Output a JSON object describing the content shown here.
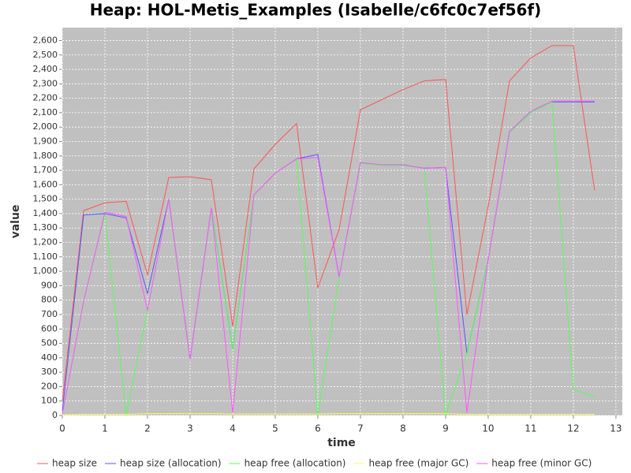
{
  "chart_data": {
    "type": "line",
    "title": "Heap: HOL-Metis_Examples (Isabelle/c6fc0c7ef56f)",
    "x_label": "time",
    "y_label": "value",
    "x": [
      0,
      0.5,
      1,
      1.5,
      2,
      2.5,
      3,
      3.5,
      4,
      4.5,
      5,
      5.5,
      6,
      6.5,
      7,
      7.5,
      8,
      8.5,
      9,
      9.5,
      10,
      10.5,
      11,
      11.5,
      12,
      12.5
    ],
    "series": [
      {
        "name": "heap size",
        "color": "#ff5555",
        "values": [
          100,
          1420,
          1475,
          1485,
          975,
          1650,
          1655,
          1635,
          620,
          1710,
          1880,
          2025,
          885,
          1290,
          2120,
          2190,
          2260,
          2320,
          2330,
          700,
          1450,
          2320,
          2480,
          2565,
          2565,
          1560
        ]
      },
      {
        "name": "heap size (allocation)",
        "color": "#5555ff",
        "values": [
          30,
          1390,
          1400,
          1370,
          845,
          1500,
          390,
          1440,
          460,
          1530,
          1680,
          1780,
          1810,
          960,
          1750,
          1735,
          1735,
          1715,
          1720,
          430,
          1080,
          1965,
          2100,
          2175,
          2175,
          2175
        ]
      },
      {
        "name": "heap free (allocation)",
        "color": "#55ff55",
        "values": [
          10,
          790,
          1400,
          0,
          730,
          1500,
          390,
          1440,
          460,
          1530,
          1680,
          1780,
          0,
          960,
          1750,
          1735,
          1735,
          1715,
          0,
          430,
          1080,
          1965,
          2100,
          2175,
          180,
          130
        ]
      },
      {
        "name": "heap free (major GC)",
        "color": "#ffff55",
        "values": [
          5,
          8,
          8,
          8,
          12,
          12,
          12,
          12,
          10,
          10,
          10,
          10,
          10,
          12,
          12,
          12,
          12,
          12,
          12,
          8,
          8,
          8,
          8,
          8,
          8,
          8
        ]
      },
      {
        "name": "heap free (minor GC)",
        "color": "#ff55ff",
        "values": [
          10,
          790,
          1410,
          1380,
          730,
          1500,
          390,
          1440,
          20,
          1530,
          1680,
          1780,
          1790,
          960,
          1755,
          1740,
          1740,
          1715,
          1720,
          20,
          1080,
          1970,
          2110,
          2180,
          2180,
          2180
        ]
      }
    ],
    "xlim": [
      0,
      13.15
    ],
    "ylim": [
      0,
      2690
    ],
    "xticks": [
      0,
      1,
      2,
      3,
      4,
      5,
      6,
      7,
      8,
      9,
      10,
      11,
      12,
      13
    ],
    "yticks": [
      0,
      100,
      200,
      300,
      400,
      500,
      600,
      700,
      800,
      900,
      {
        "value": 1000,
        "label": "1,000"
      },
      {
        "value": 1100,
        "label": "1,100"
      },
      {
        "value": 1200,
        "label": "1,200"
      },
      {
        "value": 1300,
        "label": "1,300"
      },
      {
        "value": 1400,
        "label": "1,400"
      },
      {
        "value": 1500,
        "label": "1,500"
      },
      {
        "value": 1600,
        "label": "1,600"
      },
      {
        "value": 1700,
        "label": "1,700"
      },
      {
        "value": 1800,
        "label": "1,800"
      },
      {
        "value": 1900,
        "label": "1,900"
      },
      {
        "value": 2000,
        "label": "2,000"
      },
      {
        "value": 2100,
        "label": "2,100"
      },
      {
        "value": 2200,
        "label": "2,200"
      },
      {
        "value": 2300,
        "label": "2,300"
      },
      {
        "value": 2400,
        "label": "2,400"
      },
      {
        "value": 2500,
        "label": "2,500"
      },
      {
        "value": 2600,
        "label": "2,600"
      }
    ],
    "grid": true,
    "legend": "bottom"
  }
}
